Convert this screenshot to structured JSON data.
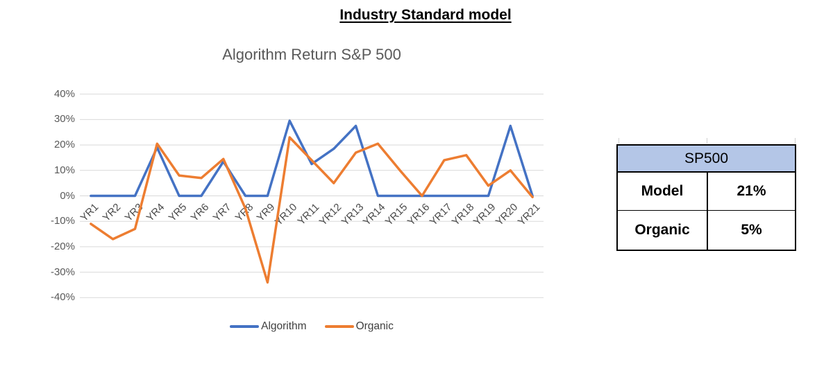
{
  "header": {
    "title": "Industry Standard model"
  },
  "chart_data": {
    "type": "line",
    "title": "Algorithm Return S&P 500",
    "categories": [
      "YR1",
      "YR2",
      "YR3",
      "YR4",
      "YR5",
      "YR6",
      "YR7",
      "YR8",
      "YR9",
      "YR10",
      "YR11",
      "YR12",
      "YR13",
      "YR14",
      "YR15",
      "YR16",
      "YR17",
      "YR18",
      "YR19",
      "YR20",
      "YR21"
    ],
    "series": [
      {
        "name": "Algorithm",
        "color": "#4472C4",
        "values": [
          0,
          0,
          0,
          19,
          0,
          0,
          13.5,
          0,
          0,
          29.5,
          12.5,
          18.5,
          27.5,
          0,
          0,
          0,
          0,
          0,
          0,
          27.5,
          0
        ]
      },
      {
        "name": "Organic",
        "color": "#ED7D31",
        "values": [
          -11,
          -17,
          -13,
          20.5,
          8,
          7,
          14.5,
          -5,
          -34,
          23,
          14,
          5,
          17,
          20.5,
          10,
          0,
          14,
          16,
          4,
          10,
          -0.5
        ]
      }
    ],
    "ylabel": "",
    "xlabel": "",
    "ylim": [
      -40,
      40
    ],
    "ytick_step": 10,
    "ytick_labels": [
      "40%",
      "30%",
      "20%",
      "10%",
      "0%",
      "-10%",
      "-20%",
      "-30%",
      "-40%"
    ],
    "grid": "horizontal",
    "gridline_color": "#d9d9d9",
    "legend_position": "bottom"
  },
  "side_table": {
    "header": "SP500",
    "header_bg": "#B4C6E7",
    "rows": [
      {
        "label": "Model",
        "value": "21%"
      },
      {
        "label": "Organic",
        "value": "5%"
      }
    ]
  }
}
